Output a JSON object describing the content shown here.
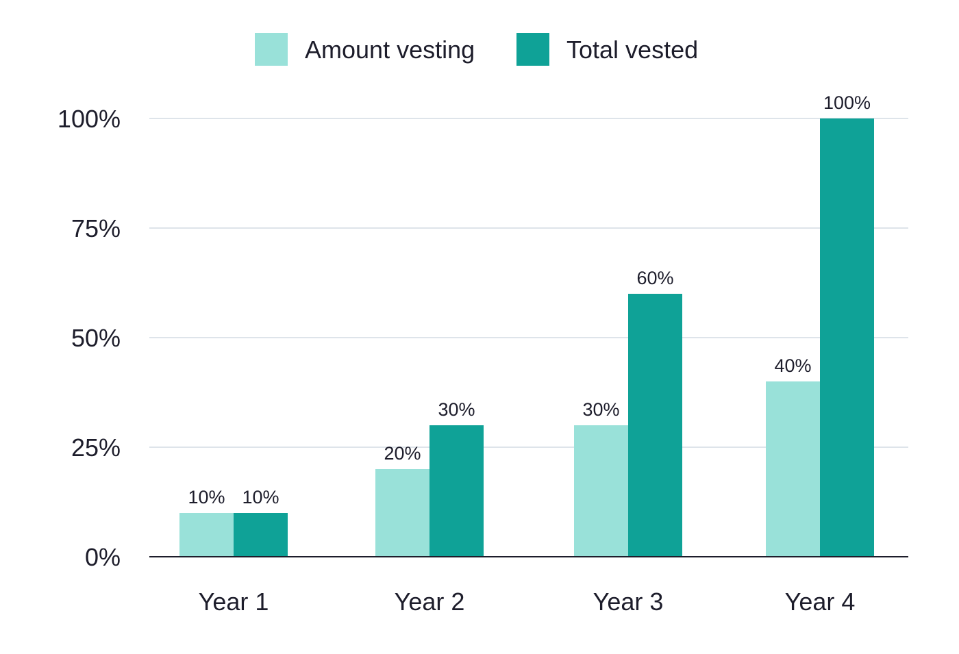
{
  "chart_data": {
    "type": "bar",
    "categories": [
      "Year 1",
      "Year 2",
      "Year 3",
      "Year 4"
    ],
    "series": [
      {
        "name": "Amount vesting",
        "values": [
          10,
          20,
          30,
          40
        ],
        "labels": [
          "10%",
          "20%",
          "30%",
          "40%"
        ],
        "color": "#99e1d9"
      },
      {
        "name": "Total vested",
        "values": [
          10,
          30,
          60,
          100
        ],
        "labels": [
          "10%",
          "30%",
          "60%",
          "100%"
        ],
        "color": "#0fa297"
      }
    ],
    "yticks": [
      {
        "value": 0,
        "label": "0%"
      },
      {
        "value": 25,
        "label": "25%"
      },
      {
        "value": 50,
        "label": "50%"
      },
      {
        "value": 75,
        "label": "75%"
      },
      {
        "value": 100,
        "label": "100%"
      }
    ],
    "ylim": [
      0,
      100
    ],
    "grid": true,
    "legend_position": "top-center",
    "gridline_color": "#d3dbe3",
    "axis_color": "#1d1d2b",
    "title": "",
    "xlabel": "",
    "ylabel": ""
  }
}
